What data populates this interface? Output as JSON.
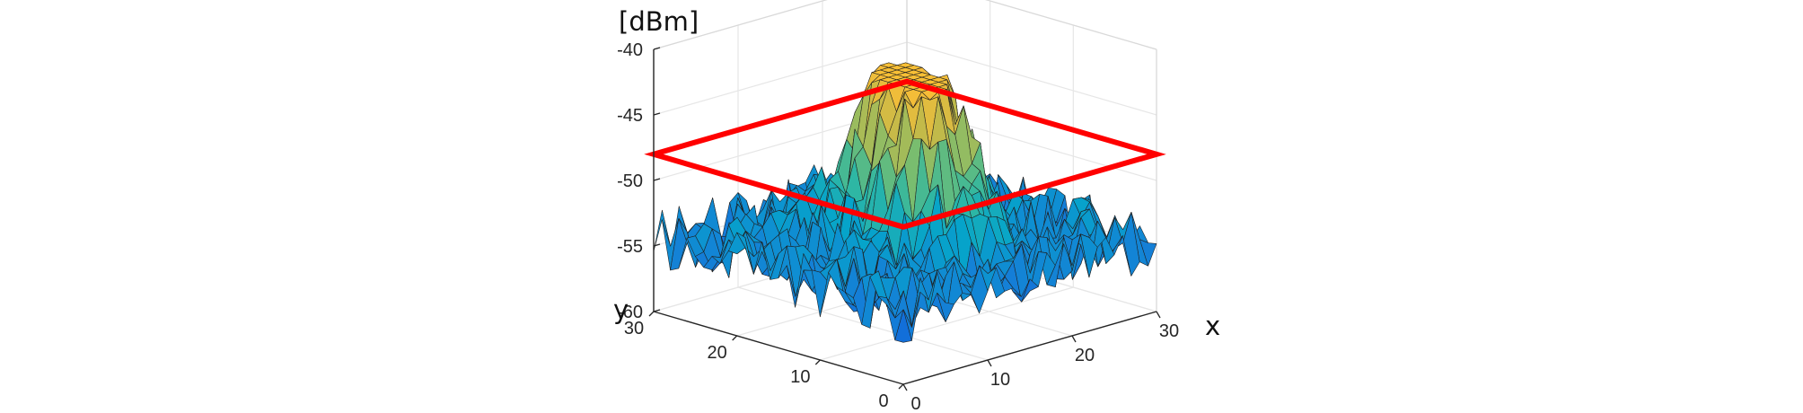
{
  "chart_data": {
    "type": "surface",
    "title": "",
    "xlabel": "x",
    "ylabel": "y",
    "zlabel": "[dBm]",
    "xlim": [
      0,
      30
    ],
    "ylim": [
      0,
      30
    ],
    "zlim": [
      -60,
      -40
    ],
    "x_ticks": [
      0,
      10,
      20,
      30
    ],
    "y_ticks": [
      0,
      10,
      20,
      30
    ],
    "z_ticks": [
      -60,
      -55,
      -50,
      -45,
      -40
    ],
    "grid": true,
    "colormap": "parula",
    "threshold_plane": {
      "z": -48,
      "color": "#ff0000"
    },
    "surface": {
      "grid_size": 31,
      "noise_floor": -54.5,
      "noise_amplitude": 2.4,
      "peaks": [
        {
          "x": 15,
          "y": 12,
          "amplitude": 10.5,
          "spread": 3.1
        },
        {
          "x": 17,
          "y": 18,
          "amplitude": 10.8,
          "spread": 3.1
        },
        {
          "x": 15,
          "y": 15,
          "amplitude": 4.0,
          "spread": 4.5
        }
      ]
    }
  }
}
